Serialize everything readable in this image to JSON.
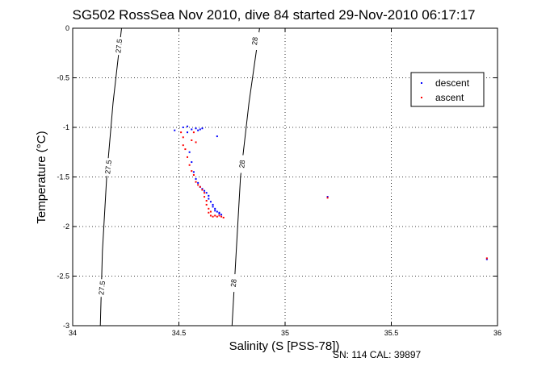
{
  "chart_data": {
    "type": "scatter",
    "title": "SG502 RossSea Nov 2010, dive 84 started 29-Nov-2010 06:17:17",
    "xlabel": "Salinity (S [PSS-78])",
    "ylabel": "Temperature (°C)",
    "xlim": [
      34,
      36
    ],
    "ylim": [
      -3,
      0
    ],
    "x_ticks": [
      "34",
      "34.5",
      "35",
      "35.5",
      "36"
    ],
    "y_ticks": [
      "0",
      "-0.5",
      "-1",
      "-1.5",
      "-2",
      "-2.5",
      "-3"
    ],
    "grid": true,
    "legend_position": "top-right",
    "series": [
      {
        "name": "descent",
        "color": "#0000ff",
        "points": [
          [
            34.48,
            -1.03
          ],
          [
            34.52,
            -1.0
          ],
          [
            34.54,
            -0.99
          ],
          [
            34.56,
            -1.02
          ],
          [
            34.58,
            -1.01
          ],
          [
            34.59,
            -1.03
          ],
          [
            34.6,
            -1.02
          ],
          [
            34.61,
            -1.01
          ],
          [
            34.54,
            -1.05
          ],
          [
            34.68,
            -1.09
          ],
          [
            34.55,
            -1.25
          ],
          [
            34.56,
            -1.35
          ],
          [
            34.57,
            -1.45
          ],
          [
            34.58,
            -1.52
          ],
          [
            34.59,
            -1.56
          ],
          [
            34.6,
            -1.6
          ],
          [
            34.61,
            -1.62
          ],
          [
            34.62,
            -1.64
          ],
          [
            34.63,
            -1.66
          ],
          [
            34.64,
            -1.69
          ],
          [
            34.64,
            -1.72
          ],
          [
            34.65,
            -1.75
          ],
          [
            34.66,
            -1.78
          ],
          [
            34.66,
            -1.8
          ],
          [
            34.67,
            -1.82
          ],
          [
            34.67,
            -1.84
          ],
          [
            34.68,
            -1.85
          ],
          [
            34.69,
            -1.87
          ],
          [
            34.69,
            -1.86
          ],
          [
            34.7,
            -1.88
          ],
          [
            35.2,
            -1.7
          ],
          [
            35.95,
            -2.33
          ]
        ]
      },
      {
        "name": "ascent",
        "color": "#ff0000",
        "points": [
          [
            34.51,
            -1.05
          ],
          [
            34.52,
            -1.1
          ],
          [
            34.52,
            -1.18
          ],
          [
            34.53,
            -1.22
          ],
          [
            34.56,
            -1.13
          ],
          [
            34.57,
            -1.05
          ],
          [
            34.58,
            -1.15
          ],
          [
            34.54,
            -1.3
          ],
          [
            34.55,
            -1.38
          ],
          [
            34.56,
            -1.44
          ],
          [
            34.57,
            -1.48
          ],
          [
            34.58,
            -1.55
          ],
          [
            34.59,
            -1.58
          ],
          [
            34.6,
            -1.6
          ],
          [
            34.61,
            -1.63
          ],
          [
            34.62,
            -1.66
          ],
          [
            34.62,
            -1.7
          ],
          [
            34.63,
            -1.74
          ],
          [
            34.63,
            -1.78
          ],
          [
            34.64,
            -1.82
          ],
          [
            34.64,
            -1.86
          ],
          [
            34.65,
            -1.89
          ],
          [
            34.66,
            -1.9
          ],
          [
            34.67,
            -1.89
          ],
          [
            34.68,
            -1.9
          ],
          [
            34.69,
            -1.89
          ],
          [
            34.7,
            -1.9
          ],
          [
            34.71,
            -1.91
          ],
          [
            34.65,
            -1.85
          ],
          [
            35.2,
            -1.71
          ],
          [
            35.95,
            -2.32
          ]
        ]
      }
    ],
    "contours": [
      {
        "label": "27.5",
        "points": [
          [
            34.23,
            0
          ],
          [
            34.19,
            -0.75
          ],
          [
            34.16,
            -1.5
          ],
          [
            34.14,
            -2.25
          ],
          [
            34.13,
            -3
          ]
        ]
      },
      {
        "label": "28",
        "points": [
          [
            34.88,
            0
          ],
          [
            34.83,
            -0.75
          ],
          [
            34.79,
            -1.5
          ],
          [
            34.77,
            -2.25
          ],
          [
            34.75,
            -3
          ]
        ]
      }
    ],
    "contour_labels": [
      {
        "text": "27.5",
        "x": 34.22,
        "y": -0.18
      },
      {
        "text": "27.5",
        "x": 34.17,
        "y": -1.4
      },
      {
        "text": "27.5",
        "x": 34.14,
        "y": -2.62
      },
      {
        "text": "28",
        "x": 34.86,
        "y": -0.13
      },
      {
        "text": "28",
        "x": 34.8,
        "y": -1.37
      },
      {
        "text": "28",
        "x": 34.76,
        "y": -2.57
      }
    ]
  },
  "footer": "SN: 114  CAL: 39897"
}
